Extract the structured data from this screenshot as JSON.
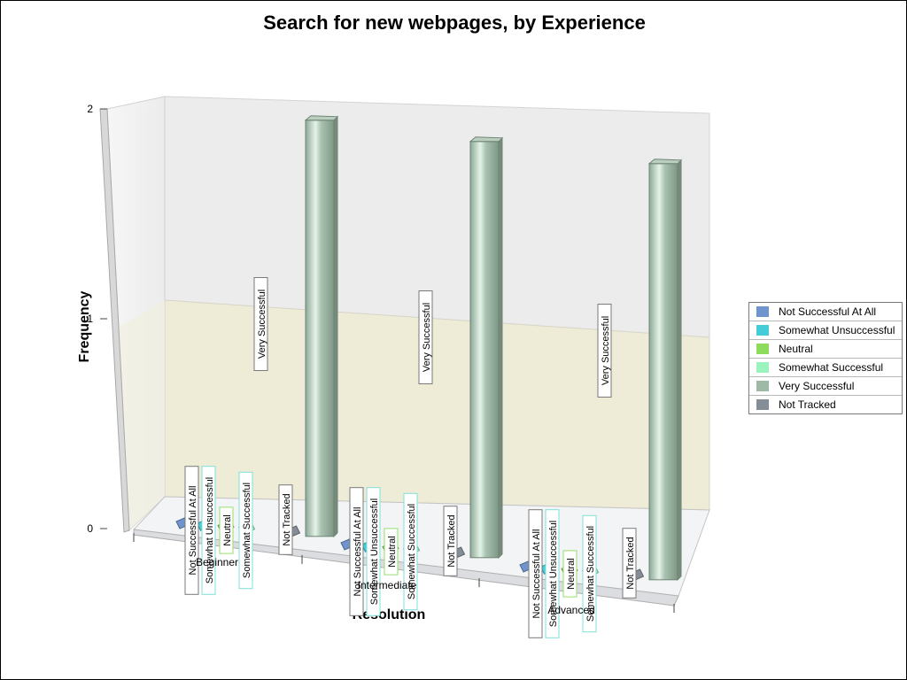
{
  "chart_data": {
    "type": "bar",
    "title": "Search for new webpages, by Experience",
    "xlabel": "Resolution",
    "ylabel": "Frequency",
    "ylim": [
      0,
      2
    ],
    "yticks": [
      "0",
      "1",
      "2"
    ],
    "categories": [
      "Beginner",
      "Intermediate",
      "Advanced"
    ],
    "series": [
      {
        "name": "Not Successful At All",
        "color": "#7094cc",
        "values": [
          0,
          0,
          0
        ]
      },
      {
        "name": "Somewhat Unsuccessful",
        "color": "#44ccd9",
        "values": [
          0,
          0,
          0
        ]
      },
      {
        "name": "Neutral",
        "color": "#8fdc5c",
        "values": [
          0,
          0,
          0
        ]
      },
      {
        "name": "Somewhat Successful",
        "color": "#9bf3be",
        "values": [
          0,
          0,
          0
        ]
      },
      {
        "name": "Very Successful",
        "color": "#9eb9a5",
        "values": [
          2,
          2,
          2
        ]
      },
      {
        "name": "Not Tracked",
        "color": "#858e96",
        "values": [
          0,
          0,
          0
        ]
      }
    ],
    "legend_position": "right",
    "grid": true
  }
}
